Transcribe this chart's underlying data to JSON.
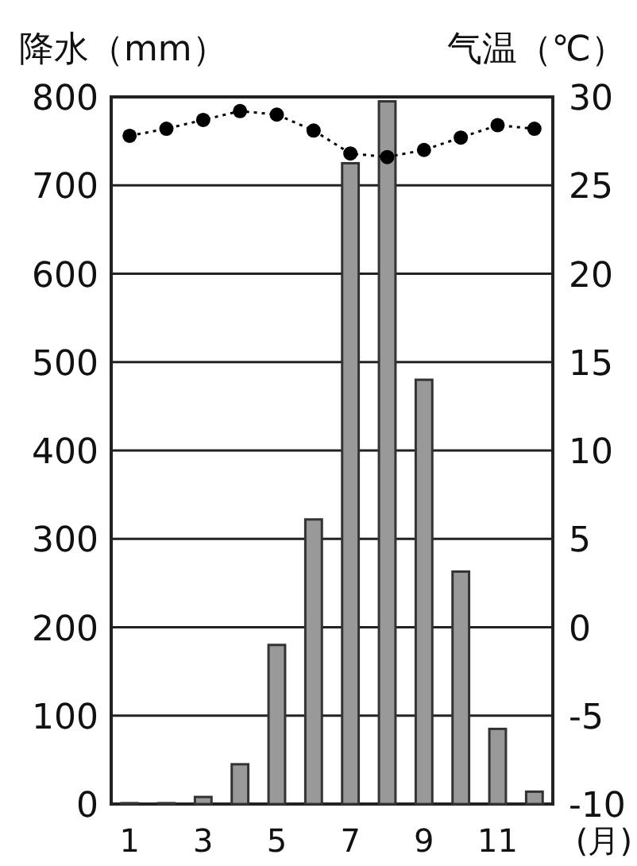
{
  "chart_data": {
    "type": "bar",
    "ylabel": "降水（mm）",
    "y2label": "气温（℃）",
    "xlabel": "(月)",
    "categories": [
      "1",
      null,
      "3",
      null,
      "5",
      null,
      "7",
      null,
      "9",
      null,
      "11",
      null
    ],
    "series": [
      {
        "color": "#999999",
        "values": [
          1,
          1,
          8,
          45,
          180,
          322,
          725,
          795,
          480,
          263,
          85,
          14
        ]
      },
      {
        "type": "line",
        "axis": "y2",
        "color": "#000000",
        "marker": "circle",
        "line_style": "dotted",
        "values": [
          27.8,
          28.2,
          28.7,
          29.2,
          29.0,
          28.1,
          26.8,
          26.6,
          27.0,
          27.7,
          28.4,
          28.2
        ]
      }
    ],
    "ylim": [
      0,
      800
    ],
    "yticks": [
      0,
      100,
      200,
      300,
      400,
      500,
      600,
      700,
      800
    ],
    "y2lim": [
      -10,
      30
    ],
    "y2ticks": [
      -10,
      -5,
      0,
      5,
      10,
      15,
      20,
      25,
      30
    ],
    "grid": "y"
  }
}
